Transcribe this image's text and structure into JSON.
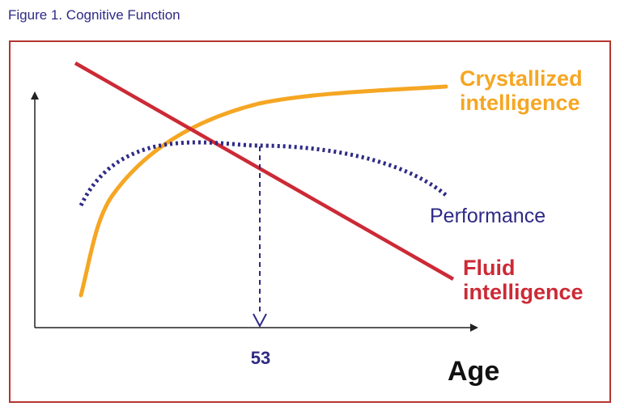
{
  "figure_title": "Figure 1. Cognitive Function",
  "colors": {
    "frame": "#b5352f",
    "crystallized": "#f5a623",
    "fluid": "#cc2a36",
    "performance": "#2e2a85",
    "axis": "#222222"
  },
  "chart_data": {
    "type": "line",
    "xlabel": "Age",
    "ylabel": "",
    "grid": false,
    "series": [
      {
        "name": "Crystallized intelligence",
        "label_lines": [
          "Crystallized",
          "intelligence"
        ],
        "style": "solid"
      },
      {
        "name": "Fluid intelligence",
        "label_lines": [
          "Fluid",
          "intelligence"
        ],
        "style": "solid"
      },
      {
        "name": "Performance",
        "label_lines": [
          "Performance"
        ],
        "style": "dotted"
      }
    ],
    "annotations": [
      {
        "text": "53",
        "type": "peak-marker",
        "series": "Performance",
        "x": 53
      }
    ]
  }
}
